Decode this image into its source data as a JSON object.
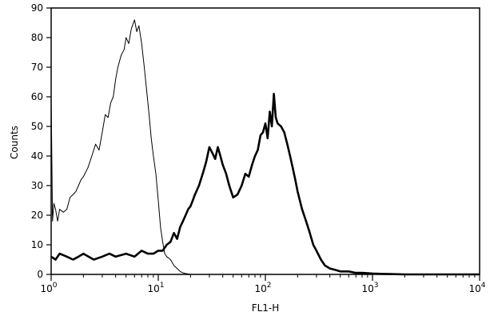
{
  "chart_data": {
    "type": "line",
    "xlabel": "FL1-H",
    "ylabel": "Counts",
    "xscale": "log",
    "xlim": [
      1,
      10000
    ],
    "ylim": [
      0,
      90
    ],
    "grid": false,
    "y_ticks": [
      0,
      10,
      20,
      30,
      40,
      50,
      60,
      70,
      80,
      90
    ],
    "y_tick_labels": [
      "0",
      "10",
      "20",
      "30",
      "40",
      "50",
      "60",
      "70",
      "80",
      "90"
    ],
    "x_ticks": [
      {
        "base": "10",
        "exp": "0"
      },
      {
        "base": "10",
        "exp": "1"
      },
      {
        "base": "10",
        "exp": "2"
      },
      {
        "base": "10",
        "exp": "3"
      },
      {
        "base": "10",
        "exp": "4"
      }
    ],
    "series": [
      {
        "style": "thin",
        "x": [
          1.0,
          1.03,
          1.06,
          1.1,
          1.15,
          1.2,
          1.3,
          1.4,
          1.5,
          1.6,
          1.7,
          1.8,
          1.9,
          2.0,
          2.2,
          2.4,
          2.6,
          2.8,
          3.0,
          3.2,
          3.4,
          3.6,
          3.8,
          4.0,
          4.2,
          4.5,
          4.8,
          5.0,
          5.3,
          5.6,
          6.0,
          6.3,
          6.6,
          7.0,
          7.4,
          7.8,
          8.2,
          8.6,
          9.0,
          9.5,
          10.0,
          10.5,
          11.0,
          11.5,
          12.0,
          13.0,
          14.0,
          15.0,
          16.0,
          17.0,
          18.0,
          20.0,
          25.0,
          30.0,
          40.0,
          60.0,
          100.0,
          1000.0,
          10000.0
        ],
        "y": [
          60,
          18,
          24,
          22,
          18,
          22,
          21,
          22,
          26,
          27,
          28,
          30,
          32,
          33,
          36,
          40,
          44,
          42,
          48,
          54,
          53,
          58,
          60,
          66,
          70,
          74,
          76,
          80,
          78,
          83,
          86,
          82,
          84,
          78,
          70,
          62,
          54,
          46,
          40,
          34,
          25,
          16,
          11,
          7,
          6,
          5,
          3,
          2,
          1,
          0.5,
          0.3,
          0,
          0,
          0,
          0,
          0,
          0,
          0,
          0
        ]
      },
      {
        "style": "thick",
        "x": [
          1.0,
          1.1,
          1.2,
          1.4,
          1.6,
          1.8,
          2.0,
          2.5,
          3.0,
          3.5,
          4.0,
          5.0,
          6.0,
          7.0,
          8.0,
          9.0,
          10.0,
          11.0,
          12.0,
          13.0,
          14.0,
          15.0,
          16.0,
          17.0,
          18.0,
          19.0,
          20.0,
          21.0,
          22.0,
          24.0,
          26.0,
          28.0,
          30.0,
          32.0,
          34.0,
          36.0,
          38.0,
          40.0,
          43.0,
          46.0,
          50.0,
          55.0,
          60.0,
          65.0,
          70.0,
          75.0,
          80.0,
          85.0,
          90.0,
          95.0,
          100.0,
          105.0,
          110.0,
          115.0,
          120.0,
          125.0,
          130.0,
          140.0,
          150.0,
          160.0,
          170.0,
          180.0,
          190.0,
          200.0,
          220.0,
          240.0,
          260.0,
          280.0,
          300.0,
          330.0,
          360.0,
          400.0,
          450.0,
          500.0,
          600.0,
          700.0,
          800.0,
          1000.0,
          1200.0,
          1500.0,
          2000.0,
          3000.0,
          5000.0,
          10000.0
        ],
        "y": [
          6,
          5,
          7,
          6,
          5,
          6,
          7,
          5,
          6,
          7,
          6,
          7,
          6,
          8,
          7,
          7,
          8,
          8,
          10,
          11,
          14,
          12,
          16,
          18,
          20,
          22,
          23,
          25,
          27,
          30,
          34,
          38,
          43,
          41,
          39,
          43,
          40,
          37,
          34,
          30,
          26,
          27,
          30,
          34,
          33,
          37,
          40,
          42,
          47,
          48,
          51,
          46,
          55,
          50,
          61,
          53,
          51,
          50,
          48,
          44,
          40,
          36,
          32,
          28,
          22,
          18,
          14,
          10,
          8,
          5,
          3,
          2,
          1.5,
          1,
          1,
          0.5,
          0.5,
          0.3,
          0.2,
          0.1,
          0,
          0,
          0,
          0
        ]
      }
    ]
  }
}
